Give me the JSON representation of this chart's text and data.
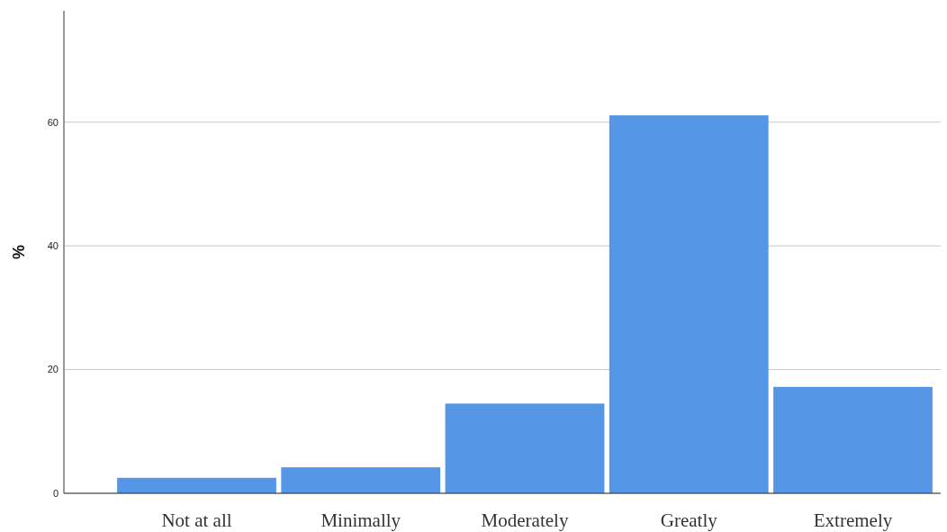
{
  "chart_data": {
    "type": "bar",
    "ylabel": "%",
    "categories": [
      "Not at all",
      "Minimally",
      "Moderately",
      "Greatly",
      "Extremely"
    ],
    "values": [
      2.5,
      4.2,
      14.5,
      61.1,
      17.2
    ],
    "color": "#5596e6",
    "ylim": [
      0,
      78
    ],
    "yticks": [
      0,
      20,
      40,
      60
    ],
    "grid": "y"
  }
}
